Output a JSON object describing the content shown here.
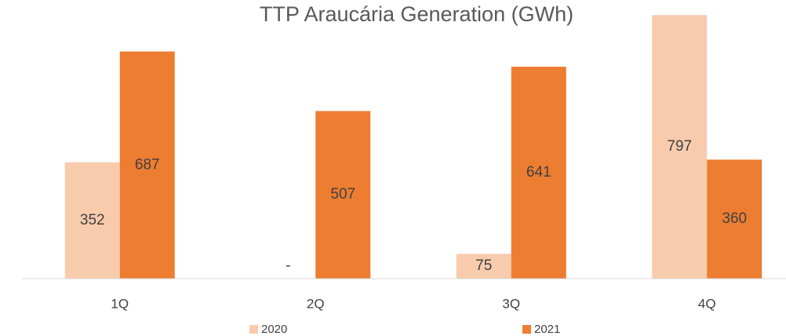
{
  "chart_data": {
    "type": "bar",
    "title": "TTP Araucária Generation (GWh)",
    "categories": [
      "1Q",
      "2Q",
      "3Q",
      "4Q"
    ],
    "series": [
      {
        "name": "2020",
        "color": "#f8cbad",
        "values": [
          352,
          0,
          75,
          797
        ],
        "value_labels": [
          "352",
          "-",
          "75",
          "797"
        ]
      },
      {
        "name": "2021",
        "color": "#ed7d31",
        "values": [
          687,
          507,
          641,
          360
        ]
      }
    ],
    "ylim": [
      0,
      800
    ],
    "grid": false
  }
}
